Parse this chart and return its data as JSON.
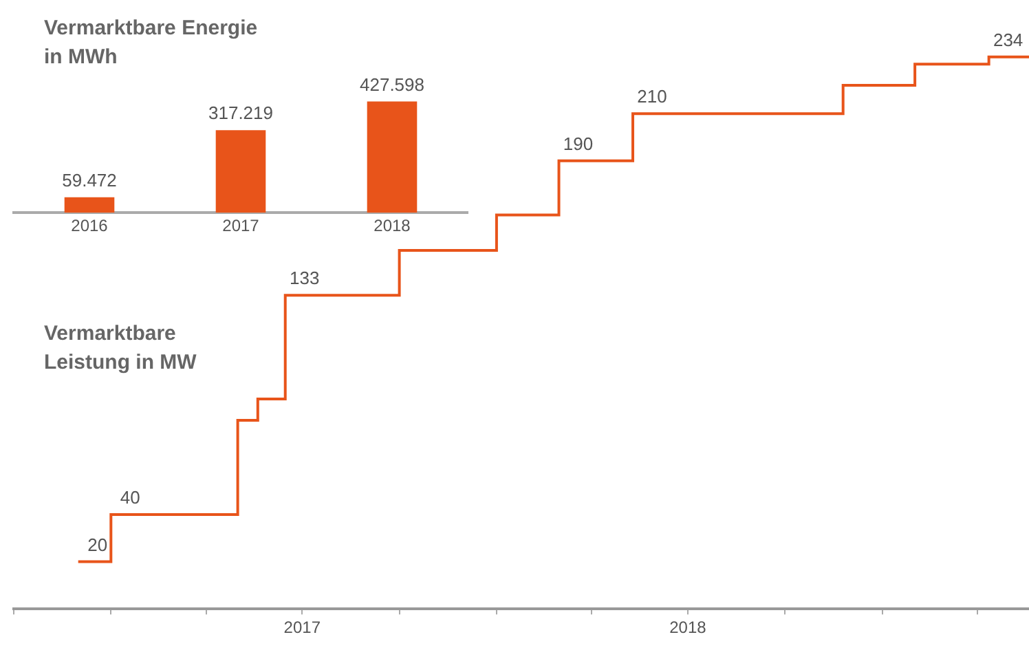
{
  "chart_data": [
    {
      "type": "step",
      "title": "Vermarktbare Leistung in MW",
      "color": "#e8541a",
      "tick_labels": "x",
      "legend": false,
      "grid": false,
      "x": [
        "2016-12-01",
        "2017-01-01",
        "2017-05-01",
        "2017-05-20",
        "2017-06-15",
        "2017-10-01",
        "2018-01-01",
        "2018-03-01",
        "2018-05-10",
        "2018-11-25",
        "2019-02-01",
        "2019-04-12",
        "2019-05-20"
      ],
      "values": [
        20,
        40,
        80,
        89,
        133,
        152,
        167,
        190,
        210,
        222,
        231,
        234,
        234
      ],
      "value_labels": [
        "20",
        "40",
        null,
        null,
        "133",
        null,
        null,
        "190",
        "210",
        null,
        null,
        "234",
        null
      ],
      "xlim": [
        "2016-10-01",
        "2019-05-20"
      ],
      "xticks": [
        {
          "value": "2016-10-01",
          "label": null
        },
        {
          "value": "2017-01-01",
          "label": null
        },
        {
          "value": "2017-04-01",
          "label": null
        },
        {
          "value": "2017-07-01",
          "label": "2017"
        },
        {
          "value": "2017-10-01",
          "label": null
        },
        {
          "value": "2018-01-01",
          "label": null
        },
        {
          "value": "2018-04-01",
          "label": null
        },
        {
          "value": "2018-07-01",
          "label": "2018"
        },
        {
          "value": "2018-10-01",
          "label": null
        },
        {
          "value": "2019-01-01",
          "label": null
        },
        {
          "value": "2019-04-01",
          "label": null
        }
      ]
    },
    {
      "type": "bar",
      "title": "Vermarktbare Energie in MWh",
      "color": "#e8541a",
      "tick_labels": "x",
      "legend": false,
      "grid": false,
      "categories": [
        "2016",
        "2017",
        "2018"
      ],
      "values": [
        59472,
        317219,
        427598
      ],
      "value_labels": [
        "59.472",
        "317.219",
        "427.598"
      ]
    }
  ]
}
